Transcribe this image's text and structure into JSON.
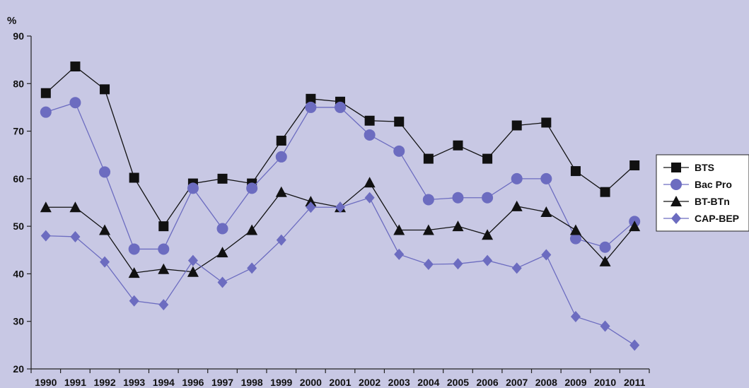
{
  "chart_data": {
    "type": "line",
    "unit_label": "%",
    "categories": [
      "1990",
      "1991",
      "1992",
      "1993",
      "1994",
      "1996",
      "1997",
      "1998",
      "1999",
      "2000",
      "2001",
      "2002",
      "2003",
      "2004",
      "2005",
      "2006",
      "2007",
      "2008",
      "2009",
      "2010",
      "2011"
    ],
    "ylim": [
      20,
      90
    ],
    "yticks": [
      20,
      30,
      40,
      50,
      60,
      70,
      80,
      90
    ],
    "grid": false,
    "legend_position": "right",
    "series": [
      {
        "name": "BTS",
        "marker": "square",
        "line_color": "#111111",
        "marker_color": "#111111",
        "values": [
          78,
          83.6,
          78.8,
          60.2,
          50,
          59,
          60,
          59,
          68,
          76.8,
          76.2,
          72.2,
          72,
          64.2,
          67,
          64.2,
          71.2,
          71.8,
          61.6,
          57.2,
          62.8
        ]
      },
      {
        "name": "Bac Pro",
        "marker": "circle",
        "line_color": "#6c6cc0",
        "marker_color": "#6c6cc0",
        "values": [
          74,
          76,
          61.4,
          45.2,
          45.2,
          58,
          49.5,
          58,
          64.6,
          75,
          75,
          69.2,
          65.8,
          55.6,
          56,
          56,
          60,
          60,
          47.4,
          45.6,
          51
        ]
      },
      {
        "name": "BT-BTn",
        "marker": "triangle",
        "line_color": "#111111",
        "marker_color": "#111111",
        "values": [
          54,
          54,
          49.2,
          40.2,
          41,
          40.4,
          44.5,
          49.2,
          57.2,
          55.2,
          54,
          59.2,
          49.2,
          49.2,
          50,
          48.2,
          54.2,
          53,
          49.2,
          42.6,
          50
        ]
      },
      {
        "name": "CAP-BEP",
        "marker": "diamond",
        "line_color": "#6c6cc0",
        "marker_color": "#6c6cc0",
        "values": [
          48,
          47.8,
          42.5,
          34.3,
          33.5,
          42.8,
          38.2,
          41.2,
          47.1,
          54,
          54,
          56,
          44.1,
          42,
          42.1,
          42.8,
          41.2,
          44,
          31,
          29,
          25
        ]
      }
    ]
  }
}
